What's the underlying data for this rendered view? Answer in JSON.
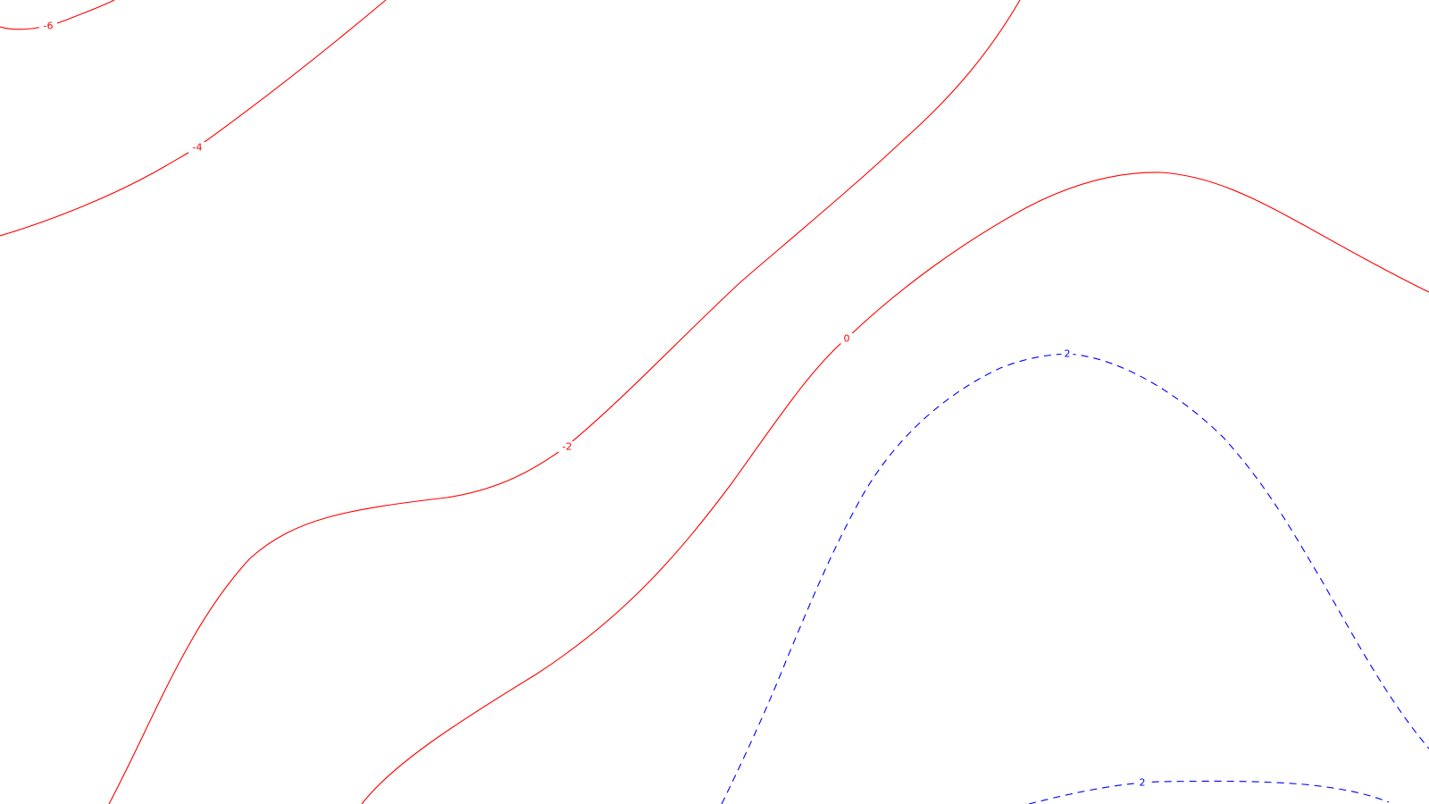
{
  "chart_data": {
    "type": "contour",
    "title": "",
    "xlabel": "",
    "ylabel": "",
    "grid": false,
    "colors": {
      "negative": "#ff0000",
      "positive": "#0000ff",
      "background": "#ffffff"
    },
    "contours": [
      {
        "level": -6,
        "label": "-6",
        "color": "#ff0000",
        "style": "solid"
      },
      {
        "level": -4,
        "label": "-4",
        "color": "#ff0000",
        "style": "solid"
      },
      {
        "level": -2,
        "label": "-2",
        "color": "#ff0000",
        "style": "solid"
      },
      {
        "level": 0,
        "label": "0",
        "color": "#ff0000",
        "style": "solid"
      },
      {
        "level": 2,
        "label": "2",
        "color": "#0000ff",
        "style": "dashed"
      },
      {
        "level": 2,
        "label": "2",
        "color": "#0000ff",
        "style": "dashed"
      }
    ]
  }
}
